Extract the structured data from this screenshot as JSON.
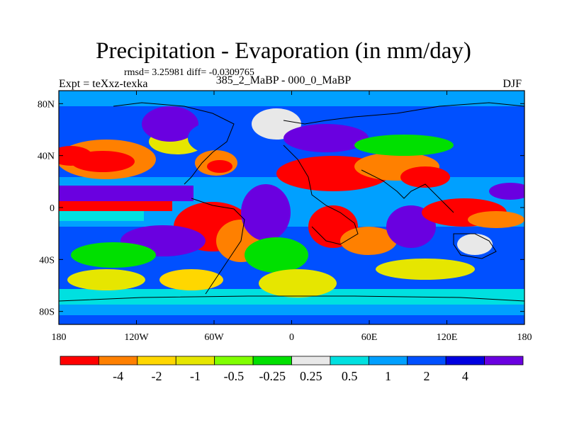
{
  "title": "Precipitation - Evaporation (in mm/day)",
  "stats": "rmsd= 3.25981 diff= -0.0309765",
  "left_string": "Expt = teXxz-texka",
  "center_string": "385_2_MaBP - 000_0_MaBP",
  "right_string": "DJF",
  "map": {
    "lon_range": [
      -180,
      180
    ],
    "lat_range": [
      -90,
      90
    ],
    "x_ticks": [
      {
        "lon": -180,
        "label": "180"
      },
      {
        "lon": -120,
        "label": "120W"
      },
      {
        "lon": -60,
        "label": "60W"
      },
      {
        "lon": 0,
        "label": "0"
      },
      {
        "lon": 60,
        "label": "60E"
      },
      {
        "lon": 120,
        "label": "120E"
      },
      {
        "lon": 180,
        "label": "180"
      }
    ],
    "y_ticks": [
      {
        "lat": 80,
        "label": "80N"
      },
      {
        "lat": 40,
        "label": "40N"
      },
      {
        "lat": 0,
        "label": "0"
      },
      {
        "lat": -40,
        "label": "40S"
      },
      {
        "lat": -80,
        "label": "80S"
      }
    ]
  },
  "colorbar": {
    "colors": [
      "#ff0000",
      "#ff8000",
      "#ffd700",
      "#e6e600",
      "#80ff00",
      "#00e000",
      "#e8e8e8",
      "#00e0e0",
      "#00a0ff",
      "#0050ff",
      "#0000e0",
      "#6a00e0"
    ],
    "labels": [
      "-4",
      "-2",
      "-1",
      "-0.5",
      "-0.25",
      "0.25",
      "0.5",
      "1",
      "2",
      "4"
    ]
  }
}
